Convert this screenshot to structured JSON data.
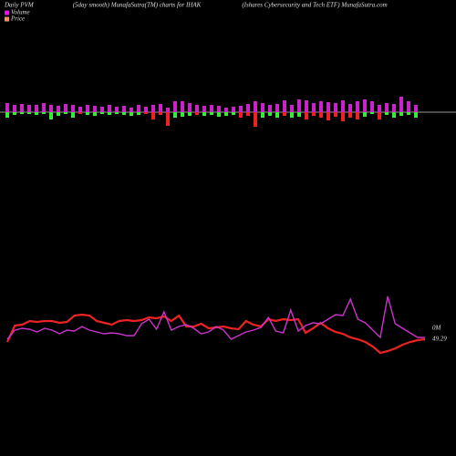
{
  "chart_data": {
    "type": "pvm",
    "title_left": "Daily PVM",
    "title": "(5day smooth) MunafaSutra(TM) charts for IHAK",
    "title_right": "(Ishares Cybersecurity and Tech ETF) MunafaSutra.com",
    "legend": [
      {
        "label": "Volume",
        "color": "#ff00ff"
      },
      {
        "label": "Price",
        "color": "#ff8c5a"
      }
    ],
    "bars": {
      "up_color": "#cc22cc",
      "up": [
        10,
        8,
        9,
        8,
        8,
        10,
        8,
        7,
        9,
        8,
        6,
        8,
        7,
        6,
        8,
        6,
        7,
        5,
        8,
        6,
        8,
        9,
        5,
        12,
        12,
        10,
        8,
        7,
        8,
        7,
        5,
        6,
        7,
        9,
        12,
        10,
        8,
        9,
        13,
        8,
        14,
        13,
        10,
        12,
        11,
        10,
        13,
        9,
        12,
        14,
        12,
        8,
        10,
        9,
        17,
        12,
        8
      ],
      "down": [
        6,
        3,
        2,
        2,
        3,
        2,
        8,
        4,
        2,
        6,
        2,
        3,
        4,
        2,
        3,
        2,
        3,
        4,
        3,
        2,
        8,
        3,
        15,
        6,
        5,
        4,
        3,
        4,
        3,
        5,
        4,
        3,
        6,
        4,
        16,
        6,
        4,
        6,
        4,
        6,
        5,
        8,
        4,
        6,
        9,
        5,
        10,
        6,
        8,
        5,
        2,
        8,
        3,
        6,
        4,
        3,
        6
      ],
      "down_colors": [
        "#33ee33",
        "#33ee33",
        "#33ee33",
        "#33ee33",
        "#33ee33",
        "#33ee33",
        "#33ee33",
        "#33ee33",
        "#33ee33",
        "#33ee33",
        "#ee2222",
        "#33ee33",
        "#33ee33",
        "#33ee33",
        "#33ee33",
        "#33ee33",
        "#33ee33",
        "#33ee33",
        "#33ee33",
        "#ee2222",
        "#ee2222",
        "#ee2222",
        "#ee2222",
        "#33ee33",
        "#33ee33",
        "#33ee33",
        "#ee2222",
        "#33ee33",
        "#33ee33",
        "#33ee33",
        "#33ee33",
        "#33ee33",
        "#ee2222",
        "#ee2222",
        "#ee2222",
        "#33ee33",
        "#33ee33",
        "#33ee33",
        "#ee2222",
        "#33ee33",
        "#33ee33",
        "#ee2222",
        "#ee2222",
        "#ee2222",
        "#ee2222",
        "#ee2222",
        "#ee2222",
        "#ee2222",
        "#ee2222",
        "#33ee33",
        "#33ee33",
        "#ee2222",
        "#33ee33",
        "#33ee33",
        "#33ee33",
        "#33ee33",
        "#33ee33"
      ]
    },
    "ylim": [
      0,
      100
    ],
    "series": [
      {
        "name": "Price",
        "color": "#ee2222",
        "values": [
          25,
          43,
          44,
          48,
          47,
          48,
          48,
          46,
          47,
          54,
          55,
          54,
          48,
          46,
          44,
          48,
          49,
          48,
          49,
          52,
          51,
          53,
          48,
          54,
          42,
          42,
          45,
          40,
          41,
          42,
          40,
          39,
          48,
          44,
          42,
          50,
          48,
          50,
          49,
          50,
          35,
          40,
          46,
          40,
          36,
          34,
          30,
          28,
          25,
          20,
          13,
          15,
          18,
          22,
          25,
          27,
          28
        ]
      },
      {
        "name": "Volume",
        "color": "#cc33cc",
        "values": [
          28,
          38,
          40,
          39,
          36,
          40,
          38,
          34,
          38,
          37,
          42,
          38,
          36,
          34,
          35,
          34,
          32,
          32,
          45,
          50,
          39,
          58,
          38,
          42,
          44,
          40,
          34,
          36,
          42,
          38,
          28,
          32,
          36,
          38,
          41,
          52,
          37,
          35,
          60,
          37,
          43,
          46,
          45,
          50,
          55,
          54,
          72,
          50,
          46,
          38,
          30,
          75,
          45,
          40,
          35,
          30,
          30
        ]
      }
    ],
    "end_labels": [
      "0M",
      "49.29"
    ]
  }
}
